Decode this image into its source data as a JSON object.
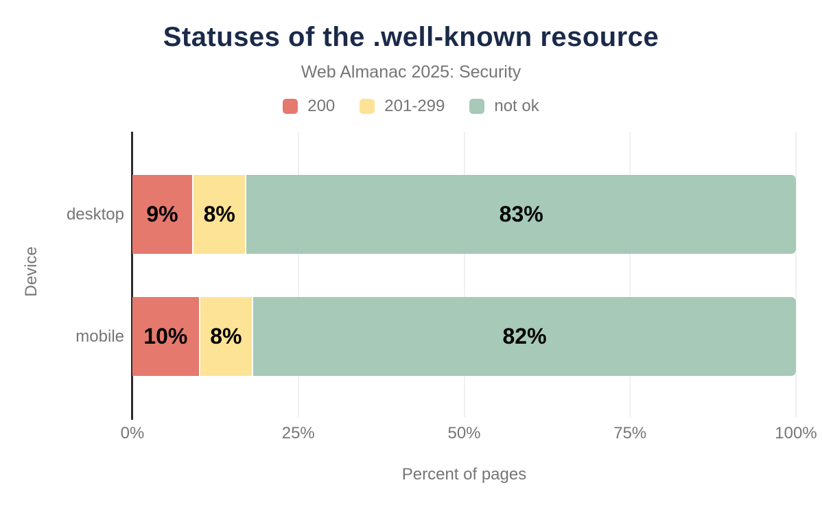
{
  "header": {
    "title": "Statuses of the .well-known resource",
    "subtitle": "Web Almanac 2025: Security"
  },
  "chart_data": {
    "type": "bar",
    "orientation": "horizontal",
    "stacked": true,
    "title": "Statuses of the .well-known resource",
    "subtitle": "Web Almanac 2025: Security",
    "categories": [
      "desktop",
      "mobile"
    ],
    "series": [
      {
        "name": "200",
        "color": "#e5796e",
        "values": [
          9,
          10
        ]
      },
      {
        "name": "201-299",
        "color": "#fde395",
        "values": [
          8,
          8
        ]
      },
      {
        "name": "not ok",
        "color": "#a6c9b8",
        "values": [
          83,
          82
        ]
      }
    ],
    "value_label_suffix": "%",
    "xlabel": "Percent of pages",
    "ylabel": "Device",
    "xlim": [
      0,
      100
    ],
    "x_ticks": [
      {
        "value": 0,
        "label": "0%"
      },
      {
        "value": 25,
        "label": "25%"
      },
      {
        "value": 50,
        "label": "50%"
      },
      {
        "value": 75,
        "label": "75%"
      },
      {
        "value": 100,
        "label": "100%"
      }
    ],
    "legend_position": "top",
    "grid": "vertical"
  },
  "style": {
    "background": "#ffffff",
    "title_color": "#1b2a4a",
    "muted_text_color": "#757575",
    "value_label_color": "#000000",
    "axis_line_color": "#2b2b2b",
    "gridline_color": "#f0f0f0"
  }
}
